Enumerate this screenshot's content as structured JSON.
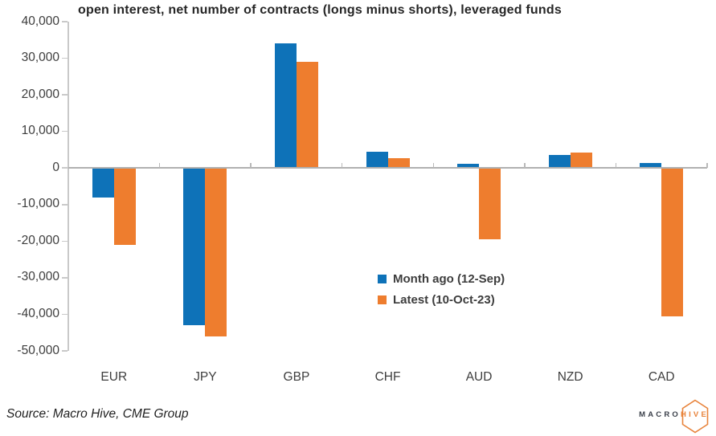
{
  "title": "open interest, net number of contracts (longs minus shorts), leveraged funds",
  "source": "Source: Macro Hive, CME Group",
  "logo": {
    "macro": "MACRO",
    "hive": "HIVE",
    "accent_color": "#E8833B",
    "text_color": "#3C414B"
  },
  "chart_data": {
    "type": "bar",
    "title": "open interest, net number of contracts (longs minus shorts), leveraged funds",
    "categories": [
      "EUR",
      "JPY",
      "GBP",
      "CHF",
      "AUD",
      "NZD",
      "CAD"
    ],
    "series": [
      {
        "name": "Month ago (12-Sep)",
        "color": "#0E72B8",
        "values": [
          -8000,
          -43000,
          34000,
          4500,
          1200,
          3600,
          1300
        ]
      },
      {
        "name": "Latest (10-Oct-23)",
        "color": "#EE7D2E",
        "values": [
          -21000,
          -46000,
          29000,
          2700,
          -19500,
          4300,
          -40500
        ]
      }
    ],
    "ylim": [
      -50000,
      40000
    ],
    "y_ticks": [
      {
        "value": 40000,
        "label": "40,000"
      },
      {
        "value": 30000,
        "label": "30,000"
      },
      {
        "value": 20000,
        "label": "20,000"
      },
      {
        "value": 10000,
        "label": "10,000"
      },
      {
        "value": 0,
        "label": "0"
      },
      {
        "value": -10000,
        "label": "-10,000"
      },
      {
        "value": -20000,
        "label": "-20,000"
      },
      {
        "value": -30000,
        "label": "-30,000"
      },
      {
        "value": -40000,
        "label": "-40,000"
      },
      {
        "value": -50000,
        "label": "-50,000"
      }
    ],
    "grid": false,
    "legend_position": "center-right",
    "xlabel": "",
    "ylabel": ""
  }
}
